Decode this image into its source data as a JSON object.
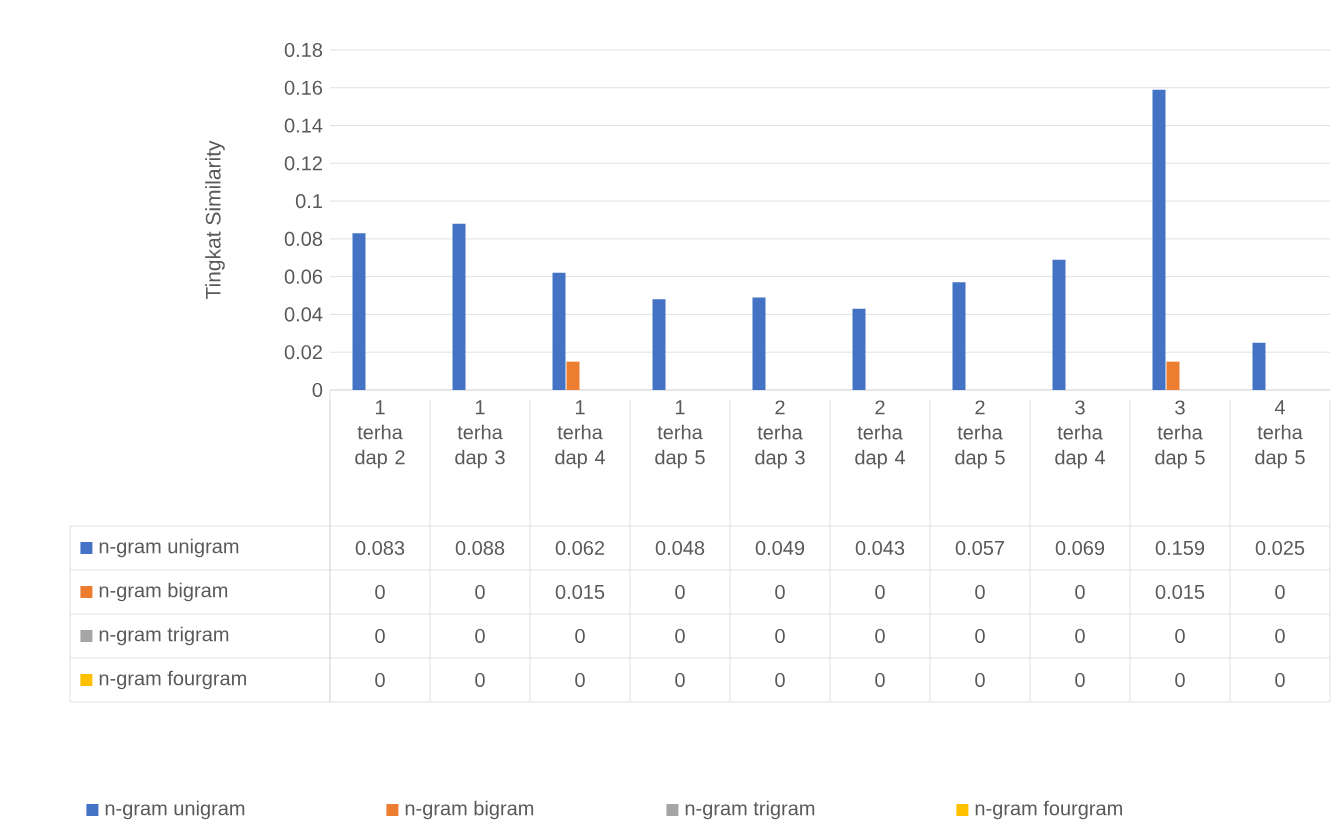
{
  "chart_data": {
    "type": "bar",
    "ylabel": "Tingkat Similarity",
    "categories": [
      "1 terha dap 2",
      "1 terha dap 3",
      "1 terha dap 4",
      "1 terha dap 5",
      "2 terha dap 3",
      "2 terha dap 4",
      "2 terha dap 5",
      "3 terha dap 4",
      "3 terha dap 5",
      "4 terha dap 5"
    ],
    "series": [
      {
        "name": "n-gram unigram",
        "color": "#4472c4",
        "values": [
          0.083,
          0.088,
          0.062,
          0.048,
          0.049,
          0.043,
          0.057,
          0.069,
          0.159,
          0.025
        ]
      },
      {
        "name": "n-gram bigram",
        "color": "#ed7d31",
        "values": [
          0,
          0,
          0.015,
          0,
          0,
          0,
          0,
          0,
          0.015,
          0
        ]
      },
      {
        "name": "n-gram trigram",
        "color": "#a5a5a5",
        "values": [
          0,
          0,
          0,
          0,
          0,
          0,
          0,
          0,
          0,
          0
        ]
      },
      {
        "name": "n-gram fourgram",
        "color": "#ffc000",
        "values": [
          0,
          0,
          0,
          0,
          0,
          0,
          0,
          0,
          0,
          0
        ]
      }
    ],
    "ylim": [
      0,
      0.18
    ],
    "yticks": [
      0,
      0.02,
      0.04,
      0.06,
      0.08,
      0.1,
      0.12,
      0.14,
      0.16,
      0.18
    ],
    "grid": "y",
    "legend": "bottom",
    "data_labels": true
  }
}
